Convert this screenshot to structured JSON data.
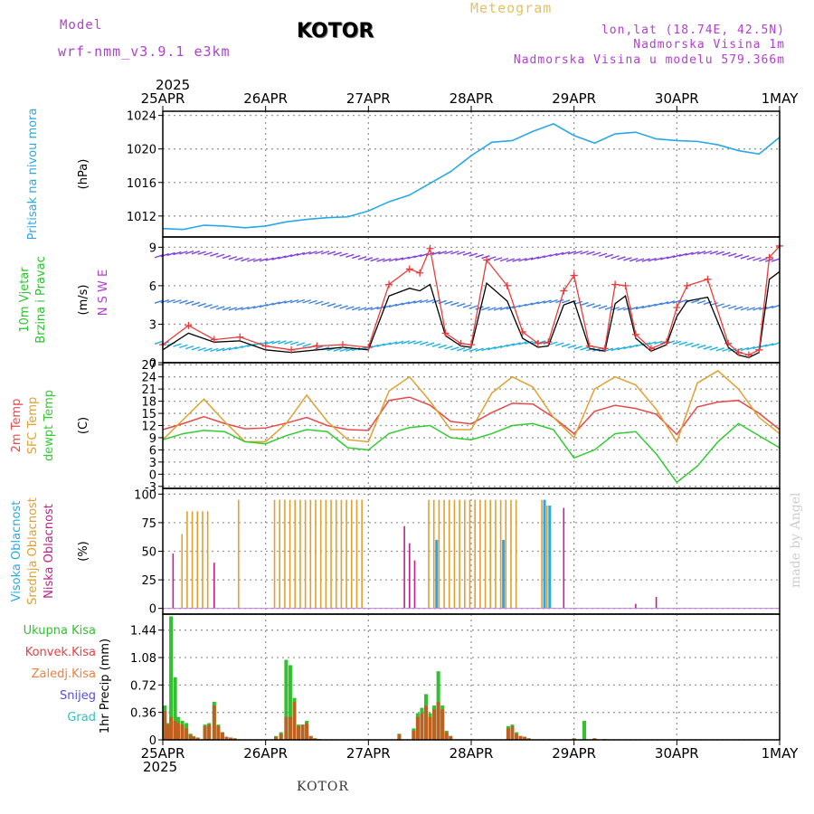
{
  "header": {
    "model_label": "Model",
    "run_label": "wrf-nmm_v3.9.1 e3km",
    "station": "KOTOR",
    "title": "Meteogram",
    "lonlat": "lon,lat (18.74E, 42.5N)",
    "elevation": "Nadmorska Visina 1m",
    "model_elevation": "Nadmorska Visina u modelu 579.366m"
  },
  "footer": {
    "station": "KOTOR",
    "credit": "made by Angel"
  },
  "colors": {
    "pressure": "#29a8e8",
    "wind_speed": "#000000",
    "wind_gust": "#e83c3c",
    "temp_2m": "#e84848",
    "temp_sfc": "#e0a030",
    "dewpoint": "#30cc30",
    "cloud_high": "#29a8e8",
    "cloud_mid": "#e0a030",
    "cloud_low": "#c0208c",
    "precip_total": "#30c030",
    "precip_conv": "#c06020",
    "purple": "#b040d0"
  },
  "chart_data": [
    {
      "type": "line",
      "id": "pressure",
      "ylabel_lines": [
        "Pritisak na nivou mora"
      ],
      "unit": "(hPa)",
      "ylim": [
        1009.5,
        1024.5
      ],
      "yticks": [
        1012,
        1016,
        1020,
        1024
      ],
      "x_days": [
        0,
        0.2,
        0.4,
        0.6,
        0.8,
        1.0,
        1.2,
        1.4,
        1.6,
        1.8,
        2.0,
        2.2,
        2.4,
        2.6,
        2.8,
        3.0,
        3.2,
        3.4,
        3.6,
        3.8,
        4.0,
        4.2,
        4.4,
        4.6,
        4.8,
        5.0,
        5.2,
        5.4,
        5.6,
        5.8,
        6.0
      ],
      "values": [
        1010.5,
        1010.4,
        1010.9,
        1010.8,
        1010.6,
        1010.8,
        1011.3,
        1011.6,
        1011.8,
        1011.9,
        1012.6,
        1013.7,
        1014.5,
        1015.9,
        1017.3,
        1019.2,
        1020.8,
        1021.0,
        1022.1,
        1023.0,
        1021.6,
        1020.7,
        1021.8,
        1022.0,
        1021.2,
        1021.0,
        1020.9,
        1020.5,
        1019.8,
        1019.4,
        1021.4
      ]
    },
    {
      "type": "line",
      "id": "wind",
      "ylabel_lines": [
        "10m Vjetar",
        "Brzina i Pravac"
      ],
      "unit": "(m/s)",
      "compass": "N S W E",
      "ylim": [
        0,
        9.8
      ],
      "yticks": [
        0,
        3,
        6,
        9
      ],
      "x_days": [
        0,
        0.25,
        0.5,
        0.75,
        1.0,
        1.25,
        1.5,
        1.75,
        2.0,
        2.2,
        2.4,
        2.5,
        2.6,
        2.75,
        2.9,
        3.0,
        3.15,
        3.35,
        3.5,
        3.65,
        3.75,
        3.9,
        4.0,
        4.15,
        4.3,
        4.4,
        4.5,
        4.6,
        4.75,
        4.9,
        5.0,
        5.1,
        5.3,
        5.5,
        5.6,
        5.7,
        5.8,
        5.9,
        6.0
      ],
      "series": [
        {
          "name": "Brzina",
          "values": [
            1.0,
            2.3,
            1.6,
            1.7,
            1.0,
            0.8,
            1.0,
            1.2,
            1.0,
            5.2,
            5.8,
            5.6,
            6.1,
            2.1,
            1.3,
            1.2,
            6.2,
            4.8,
            1.9,
            1.2,
            1.3,
            4.5,
            4.8,
            1.1,
            0.9,
            4.6,
            5.2,
            1.9,
            0.9,
            1.4,
            3.6,
            4.8,
            5.1,
            1.2,
            0.6,
            0.4,
            0.8,
            6.5,
            7.1
          ]
        },
        {
          "name": "Udari",
          "values": [
            1.4,
            2.9,
            1.8,
            2.0,
            1.3,
            1.0,
            1.3,
            1.4,
            1.2,
            6.1,
            7.3,
            7.0,
            8.9,
            2.3,
            1.5,
            1.4,
            8.0,
            6.0,
            2.4,
            1.5,
            1.6,
            5.6,
            6.8,
            1.3,
            1.1,
            6.1,
            6.0,
            2.2,
            1.1,
            1.6,
            4.3,
            6.0,
            6.5,
            1.5,
            0.8,
            0.6,
            1.0,
            8.2,
            9.1
          ]
        }
      ]
    },
    {
      "type": "line",
      "id": "temperature",
      "ylabel_lines": [
        "2m Temp",
        "SFC Temp",
        "dewpt Temp"
      ],
      "unit": "(C)",
      "ylim": [
        -3.5,
        27.5
      ],
      "yticks": [
        -3,
        0,
        3,
        6,
        9,
        12,
        15,
        18,
        21,
        24,
        27
      ],
      "x_days": [
        0,
        0.2,
        0.4,
        0.6,
        0.8,
        1.0,
        1.2,
        1.4,
        1.6,
        1.8,
        2.0,
        2.2,
        2.4,
        2.6,
        2.8,
        3.0,
        3.2,
        3.4,
        3.6,
        3.8,
        4.0,
        4.2,
        4.4,
        4.6,
        4.8,
        5.0,
        5.2,
        5.4,
        5.6,
        5.8,
        6.0
      ],
      "series": [
        {
          "name": "2m Temp",
          "values": [
            11.0,
            12.5,
            14.2,
            12.5,
            11.2,
            11.4,
            12.6,
            14.0,
            12.0,
            11.0,
            10.8,
            18.2,
            19.0,
            17.0,
            13.0,
            12.4,
            15.2,
            17.5,
            17.3,
            14.0,
            10.0,
            15.5,
            17.0,
            16.2,
            14.8,
            9.8,
            16.6,
            17.8,
            18.2,
            15.0,
            11.0
          ]
        },
        {
          "name": "SFC Temp",
          "values": [
            8.5,
            13.5,
            18.5,
            13.0,
            8.0,
            8.0,
            12.5,
            19.5,
            13.0,
            8.5,
            8.0,
            20.5,
            24.0,
            18.0,
            11.0,
            11.0,
            20.0,
            24.0,
            21.5,
            14.0,
            9.0,
            21.0,
            24.0,
            22.0,
            16.0,
            8.0,
            22.5,
            25.5,
            21.0,
            14.0,
            10.0
          ]
        },
        {
          "name": "dewpt Temp",
          "values": [
            8.5,
            10.0,
            10.8,
            10.5,
            8.0,
            7.5,
            9.5,
            11.0,
            10.5,
            6.5,
            6.0,
            10.0,
            11.5,
            12.0,
            9.0,
            8.5,
            10.0,
            12.0,
            12.5,
            11.0,
            4.0,
            6.0,
            10.0,
            10.5,
            5.0,
            -2.0,
            2.0,
            8.0,
            12.5,
            9.5,
            6.5
          ]
        }
      ]
    },
    {
      "type": "bar",
      "id": "clouds",
      "ylabel_lines": [
        "Visoka Oblacnost",
        "Srednja Oblacnost",
        "Niska Oblacnost"
      ],
      "unit": "(%)",
      "ylim": [
        -5,
        105
      ],
      "yticks": [
        0,
        25,
        50,
        75,
        100
      ],
      "x_days": [
        0.1,
        0.15,
        0.2,
        0.25,
        0.3,
        0.35,
        0.4,
        0.45,
        0.5,
        0.55,
        0.65,
        0.7,
        0.75,
        0.8,
        0.95,
        1.0,
        1.1,
        1.15,
        1.2,
        1.25,
        1.3,
        1.35,
        1.4,
        1.45,
        1.5,
        1.55,
        1.6,
        1.65,
        1.7,
        1.75,
        1.8,
        1.85,
        1.9,
        1.95,
        2.0,
        2.1,
        2.3,
        2.35,
        2.4,
        2.45,
        2.5,
        2.55,
        2.6,
        2.65,
        2.7,
        2.75,
        2.8,
        2.85,
        2.9,
        2.95,
        3.0,
        3.05,
        3.1,
        3.15,
        3.2,
        3.25,
        3.3,
        3.35,
        3.4,
        3.45,
        3.5,
        3.55,
        3.6,
        3.65,
        3.7,
        3.75,
        3.8,
        3.85,
        3.9,
        3.95,
        4.0,
        4.05,
        4.1,
        4.6,
        4.8
      ],
      "series": [
        {
          "name": "Visoka",
          "values": [
            0,
            0,
            0,
            0,
            0,
            0,
            0,
            0,
            0,
            0,
            0,
            0,
            0,
            0,
            0,
            0,
            0,
            0,
            0,
            0,
            0,
            0,
            0,
            0,
            0,
            0,
            0,
            0,
            0,
            0,
            0,
            0,
            0,
            0,
            0,
            0,
            0,
            0,
            0,
            0,
            0,
            0,
            0,
            60,
            0,
            0,
            0,
            0,
            0,
            0,
            0,
            0,
            0,
            0,
            0,
            0,
            60,
            0,
            0,
            0,
            0,
            0,
            0,
            0,
            95,
            90,
            0,
            0,
            0,
            0,
            0,
            0,
            0,
            0,
            0
          ]
        },
        {
          "name": "Srednja",
          "values": [
            0,
            0,
            65,
            85,
            85,
            85,
            85,
            85,
            0,
            0,
            0,
            0,
            95,
            0,
            0,
            0,
            95,
            95,
            95,
            95,
            95,
            95,
            95,
            95,
            95,
            95,
            95,
            95,
            95,
            95,
            95,
            95,
            95,
            95,
            0,
            0,
            0,
            0,
            0,
            0,
            0,
            0,
            95,
            95,
            95,
            95,
            95,
            95,
            95,
            95,
            95,
            95,
            95,
            95,
            95,
            95,
            95,
            95,
            95,
            95,
            0,
            0,
            0,
            0,
            95,
            90,
            0,
            0,
            0,
            0,
            0,
            0,
            0,
            0,
            0
          ]
        },
        {
          "name": "Niska",
          "values": [
            48,
            0,
            0,
            0,
            0,
            0,
            0,
            0,
            40,
            0,
            0,
            0,
            0,
            0,
            0,
            0,
            0,
            0,
            0,
            0,
            0,
            0,
            0,
            0,
            0,
            0,
            0,
            0,
            0,
            0,
            0,
            0,
            0,
            0,
            0,
            0,
            0,
            72,
            57,
            42,
            0,
            0,
            0,
            0,
            0,
            0,
            0,
            0,
            0,
            0,
            0,
            0,
            0,
            0,
            0,
            0,
            0,
            0,
            0,
            0,
            0,
            0,
            0,
            0,
            0,
            0,
            0,
            0,
            88,
            0,
            0,
            0,
            0,
            4,
            10
          ]
        }
      ]
    },
    {
      "type": "bar",
      "id": "precip",
      "ylabel_lines": [
        "Ukupna Kisa",
        "Konvek.Kisa",
        "Zaledj.Kisa",
        "Snijeg",
        "Grad"
      ],
      "unit": "1hr Precip (mm)",
      "ylim": [
        0,
        1.65
      ],
      "yticks": [
        0,
        0.36,
        0.72,
        1.08,
        1.44
      ],
      "ytick_labels": [
        "0",
        "0.36",
        "0.72",
        "1.08",
        "1.44"
      ],
      "x_days": [
        0.02,
        0.05,
        0.08,
        0.12,
        0.15,
        0.19,
        0.23,
        0.27,
        0.3,
        0.34,
        0.41,
        0.45,
        0.5,
        0.54,
        0.58,
        0.62,
        0.66,
        0.7,
        1.1,
        1.15,
        1.2,
        1.24,
        1.28,
        1.32,
        1.36,
        1.4,
        1.44,
        1.48,
        1.52,
        2.3,
        2.44,
        2.48,
        2.52,
        2.56,
        2.6,
        2.64,
        2.68,
        2.72,
        2.76,
        2.8,
        3.36,
        3.4,
        3.44,
        3.48,
        3.52,
        3.56,
        4.0,
        4.1,
        4.2,
        4.3
      ],
      "series": [
        {
          "name": "Ukupna",
          "values": [
            0.45,
            0.22,
            1.62,
            0.82,
            0.3,
            0.25,
            0.22,
            0.08,
            0.05,
            0.03,
            0.2,
            0.22,
            0.5,
            0.2,
            0.1,
            0.04,
            0.03,
            0.02,
            0.05,
            0.1,
            1.05,
            0.98,
            0.55,
            0.2,
            0.2,
            0.25,
            0.05,
            0.02,
            0.01,
            0.08,
            0.15,
            0.35,
            0.42,
            0.6,
            0.35,
            0.45,
            0.9,
            0.45,
            0.12,
            0.05,
            0.18,
            0.2,
            0.1,
            0.05,
            0.04,
            0.02,
            0.02,
            0.25,
            0.02,
            0.01
          ]
        },
        {
          "name": "Konvek",
          "values": [
            0.38,
            0.2,
            0.3,
            0.25,
            0.22,
            0.2,
            0.15,
            0.07,
            0.04,
            0.03,
            0.18,
            0.2,
            0.45,
            0.18,
            0.1,
            0.04,
            0.03,
            0.02,
            0.04,
            0.08,
            0.3,
            0.3,
            0.5,
            0.18,
            0.2,
            0.22,
            0.05,
            0.02,
            0.01,
            0.07,
            0.12,
            0.3,
            0.35,
            0.45,
            0.3,
            0.4,
            0.5,
            0.4,
            0.1,
            0.05,
            0.15,
            0.18,
            0.08,
            0.05,
            0.04,
            0.02,
            0.02,
            0.0,
            0.02,
            0.01
          ]
        }
      ]
    }
  ],
  "x_axis": {
    "year": "2025",
    "dates": [
      "25APR",
      "26APR",
      "27APR",
      "28APR",
      "29APR",
      "30APR",
      "1MAY"
    ]
  }
}
